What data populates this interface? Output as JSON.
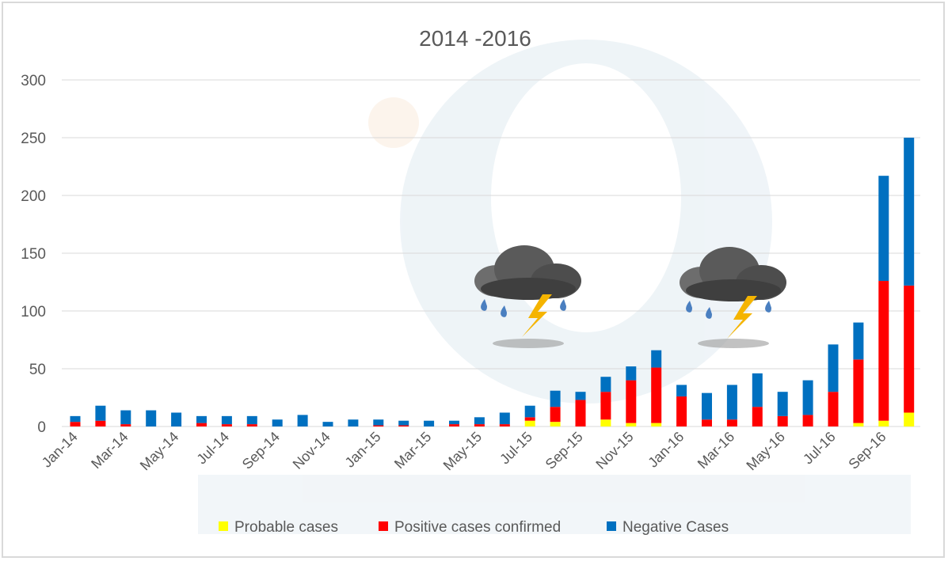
{
  "chart_data": {
    "type": "bar",
    "stacked": true,
    "title": "2014 -2016",
    "xlabel": "",
    "ylabel": "",
    "ylim": [
      0,
      300
    ],
    "yticks": [
      0,
      50,
      100,
      150,
      200,
      250,
      300
    ],
    "grid": true,
    "legend_position": "bottom",
    "categories": [
      "Jan-14",
      "Feb-14",
      "Mar-14",
      "Apr-14",
      "May-14",
      "Jun-14",
      "Jul-14",
      "Aug-14",
      "Sep-14",
      "Oct-14",
      "Nov-14",
      "Dec-14",
      "Jan-15",
      "Feb-15",
      "Mar-15",
      "Apr-15",
      "May-15",
      "Jun-15",
      "Jul-15",
      "Aug-15",
      "Sep-15",
      "Oct-15",
      "Nov-15",
      "Dec-15",
      "Jan-16",
      "Feb-16",
      "Mar-16",
      "Apr-16",
      "May-16",
      "Jun-16",
      "Jul-16",
      "Aug-16",
      "Sep-16",
      "Oct-16"
    ],
    "tick_labels": [
      "Jan-14",
      "Mar-14",
      "May-14",
      "Jul-14",
      "Sep-14",
      "Nov-14",
      "Jan-15",
      "Mar-15",
      "May-15",
      "Jul-15",
      "Sep-15",
      "Nov-15",
      "Jan-16",
      "Mar-16",
      "May-16",
      "Jul-16",
      "Sep-16"
    ],
    "series": [
      {
        "name": "Probable cases",
        "color": "#ffff00",
        "values": [
          0,
          0,
          0,
          0,
          0,
          0,
          0,
          0,
          0,
          0,
          0,
          0,
          0,
          0,
          0,
          0,
          0,
          0,
          5,
          4,
          0,
          6,
          3,
          3,
          0,
          0,
          0,
          0,
          0,
          0,
          0,
          3,
          5,
          12
        ]
      },
      {
        "name": "Positive cases confirmed",
        "color": "#ff0000",
        "values": [
          4,
          5,
          2,
          0,
          0,
          3,
          2,
          2,
          0,
          0,
          0,
          0,
          1,
          1,
          0,
          2,
          2,
          2,
          3,
          13,
          23,
          24,
          37,
          48,
          26,
          6,
          6,
          17,
          9,
          10,
          30,
          55,
          121,
          110
        ]
      },
      {
        "name": "Negative Cases",
        "color": "#0070c0",
        "values": [
          5,
          13,
          12,
          14,
          12,
          6,
          7,
          7,
          6,
          10,
          4,
          6,
          5,
          4,
          5,
          3,
          6,
          10,
          10,
          14,
          7,
          13,
          12,
          15,
          10,
          23,
          30,
          29,
          21,
          30,
          41,
          32,
          91,
          128
        ]
      }
    ]
  }
}
